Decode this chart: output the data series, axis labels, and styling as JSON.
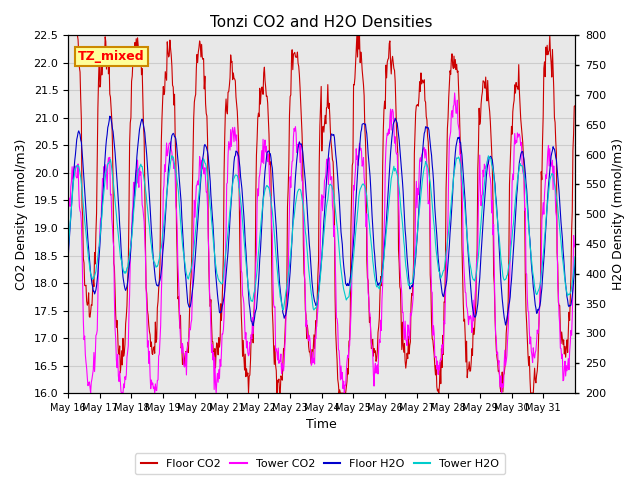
{
  "title": "Tonzi CO2 and H2O Densities",
  "xlabel": "Time",
  "ylabel_left": "CO2 Density (mmol/m3)",
  "ylabel_right": "H2O Density (mmol/m3)",
  "ylim_left": [
    16.0,
    22.5
  ],
  "ylim_right": [
    200,
    800
  ],
  "yticks_left": [
    16.0,
    16.5,
    17.0,
    17.5,
    18.0,
    18.5,
    19.0,
    19.5,
    20.0,
    20.5,
    21.0,
    21.5,
    22.0,
    22.5
  ],
  "yticks_right": [
    200,
    250,
    300,
    350,
    400,
    450,
    500,
    550,
    600,
    650,
    700,
    750,
    800
  ],
  "annotation_text": "TZ_mixed",
  "colors": {
    "floor_co2": "#CC0000",
    "tower_co2": "#FF00FF",
    "floor_h2o": "#0000CC",
    "tower_h2o": "#00CCCC"
  },
  "legend_labels": [
    "Floor CO2",
    "Tower CO2",
    "Floor H2O",
    "Tower H2O"
  ],
  "n_days": 16,
  "pts_per_day": 48,
  "xtick_days": [
    16,
    17,
    18,
    19,
    20,
    21,
    22,
    23,
    24,
    25,
    26,
    27,
    28,
    29,
    30,
    31
  ],
  "grid_color": "#CCCCCC",
  "bg_color": "#E8E8E8",
  "figsize": [
    6.4,
    4.8
  ],
  "dpi": 100
}
